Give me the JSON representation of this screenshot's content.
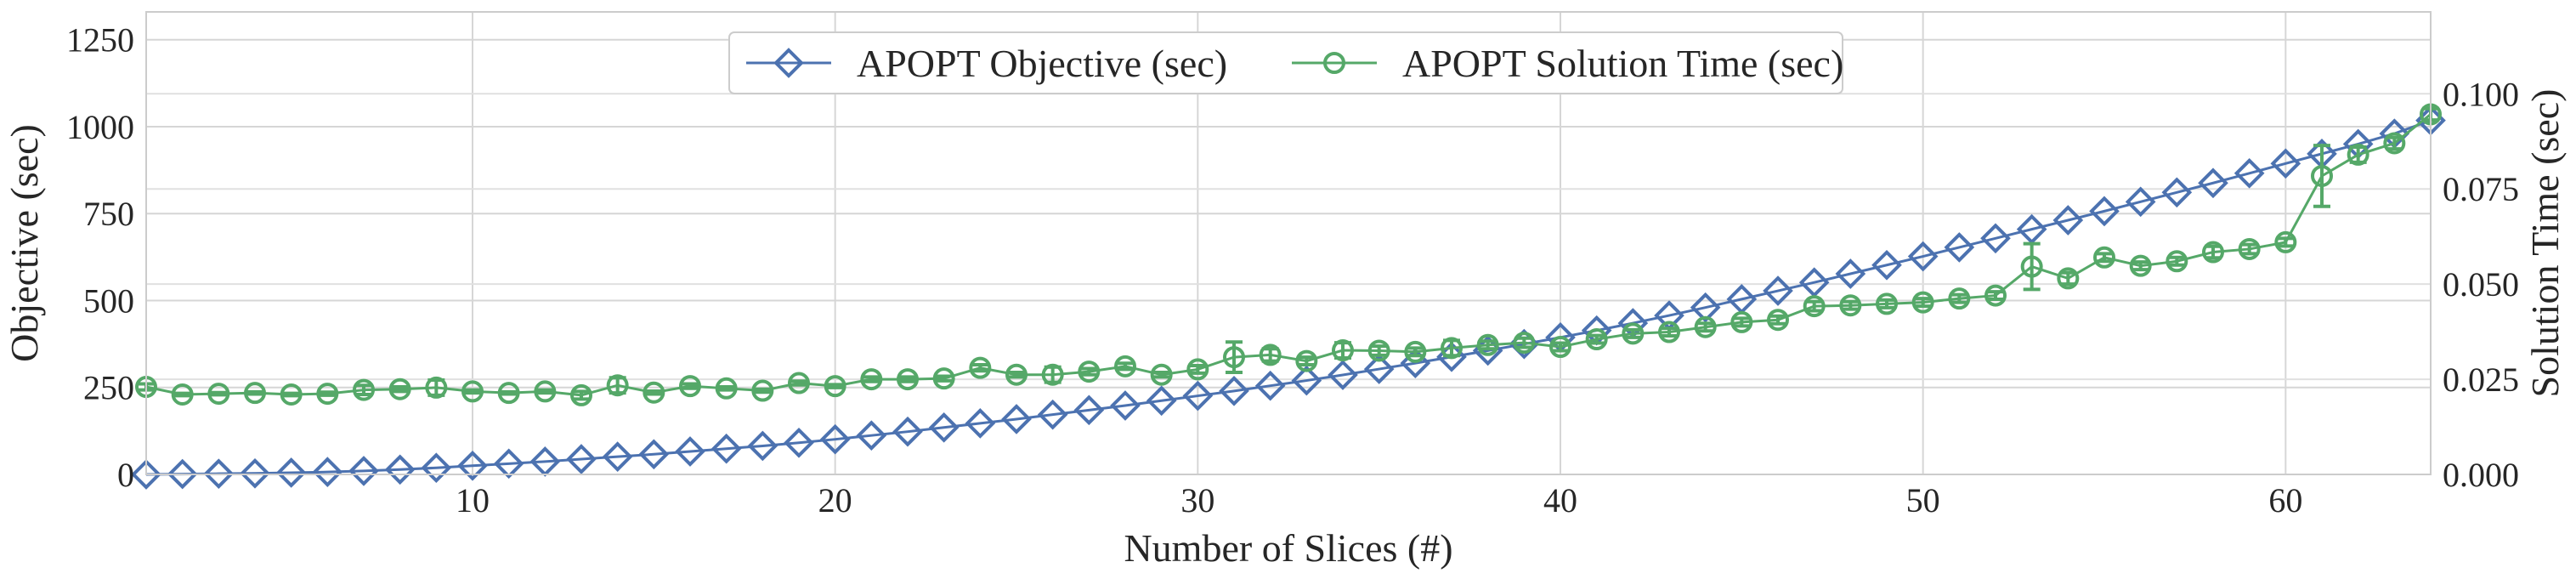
{
  "chart_data": {
    "type": "line",
    "title": "",
    "xlabel": "Number of Slices (#)",
    "ylabel": "Objective (sec)",
    "y2label": "Solution Time (sec)",
    "xlim": [
      1,
      64
    ],
    "ylim": [
      0,
      1330
    ],
    "y2lim": [
      0,
      0.1215
    ],
    "x_ticks": [
      10,
      20,
      30,
      40,
      50,
      60
    ],
    "y_ticks": [
      0,
      250,
      500,
      750,
      1000,
      1250
    ],
    "y2_ticks": [
      0.0,
      0.025,
      0.05,
      0.075,
      0.1
    ],
    "x_tick_labels": [
      "10",
      "20",
      "30",
      "40",
      "50",
      "60"
    ],
    "y_tick_labels": [
      "0",
      "250",
      "500",
      "750",
      "1000",
      "1250"
    ],
    "y2_tick_labels": [
      "0.000",
      "0.025",
      "0.050",
      "0.075",
      "0.100"
    ],
    "grid": true,
    "legend_position": "top-center",
    "series": [
      {
        "name": "APOPT Objective (sec)",
        "axis": "left",
        "marker": "diamond",
        "color": "#4c72b0",
        "x": [
          1,
          2,
          3,
          4,
          5,
          6,
          7,
          8,
          9,
          10,
          11,
          12,
          13,
          14,
          15,
          16,
          17,
          18,
          19,
          20,
          21,
          22,
          23,
          24,
          25,
          26,
          27,
          28,
          29,
          30,
          31,
          32,
          33,
          34,
          35,
          36,
          37,
          38,
          39,
          40,
          41,
          42,
          43,
          44,
          45,
          46,
          47,
          48,
          49,
          50,
          51,
          52,
          53,
          54,
          55,
          56,
          57,
          58,
          59,
          60,
          61,
          62,
          63,
          64
        ],
        "values": [
          0,
          1,
          2,
          3,
          5,
          7,
          10,
          14,
          19,
          25,
          31,
          37,
          44,
          51,
          58,
          66,
          74,
          82,
          91,
          101,
          112,
          123,
          135,
          147,
          159,
          172,
          185,
          198,
          212,
          226,
          240,
          255,
          270,
          286,
          303,
          320,
          338,
          356,
          375,
          394,
          414,
          435,
          457,
          480,
          504,
          528,
          552,
          577,
          602,
          627,
          653,
          679,
          705,
          731,
          757,
          784,
          811,
          838,
          866,
          894,
          922,
          950,
          980,
          1018
        ],
        "errors": []
      },
      {
        "name": "APOPT Solution Time (sec)",
        "axis": "right",
        "marker": "circle",
        "color": "#55a868",
        "x": [
          1,
          2,
          3,
          4,
          5,
          6,
          7,
          8,
          9,
          10,
          11,
          12,
          13,
          14,
          15,
          16,
          17,
          18,
          19,
          20,
          21,
          22,
          23,
          24,
          25,
          26,
          27,
          28,
          29,
          30,
          31,
          32,
          33,
          34,
          35,
          36,
          37,
          38,
          39,
          40,
          41,
          42,
          43,
          44,
          45,
          46,
          47,
          48,
          49,
          50,
          51,
          52,
          53,
          54,
          55,
          56,
          57,
          58,
          59,
          60,
          61,
          62,
          63,
          64
        ],
        "values": [
          0.023,
          0.021,
          0.0212,
          0.0214,
          0.021,
          0.0212,
          0.0222,
          0.0224,
          0.0228,
          0.0218,
          0.0214,
          0.0218,
          0.0208,
          0.0234,
          0.0215,
          0.0232,
          0.0226,
          0.022,
          0.024,
          0.0232,
          0.025,
          0.025,
          0.0252,
          0.028,
          0.0262,
          0.0262,
          0.027,
          0.0284,
          0.0262,
          0.0276,
          0.0308,
          0.0314,
          0.0298,
          0.0326,
          0.0325,
          0.0322,
          0.0332,
          0.034,
          0.0346,
          0.0335,
          0.0355,
          0.037,
          0.0374,
          0.0387,
          0.04,
          0.0406,
          0.0442,
          0.0444,
          0.0448,
          0.0452,
          0.0462,
          0.047,
          0.0546,
          0.0515,
          0.057,
          0.0548,
          0.056,
          0.0584,
          0.0592,
          0.061,
          0.0784,
          0.084,
          0.087,
          0.0946
        ],
        "errors": [
          0.0008,
          0.0003,
          0.0003,
          0.0003,
          0.0003,
          0.0004,
          0.0012,
          0.0006,
          0.002,
          0.0004,
          0.0003,
          0.0004,
          0.001,
          0.002,
          0.0004,
          0.0006,
          0.0004,
          0.0004,
          0.0005,
          0.0004,
          0.0006,
          0.0006,
          0.0006,
          0.0008,
          0.0006,
          0.002,
          0.0008,
          0.0008,
          0.0006,
          0.001,
          0.004,
          0.0016,
          0.001,
          0.002,
          0.0012,
          0.001,
          0.002,
          0.001,
          0.0012,
          0.001,
          0.001,
          0.001,
          0.001,
          0.001,
          0.001,
          0.001,
          0.0012,
          0.001,
          0.001,
          0.001,
          0.001,
          0.001,
          0.006,
          0.0015,
          0.001,
          0.001,
          0.001,
          0.0015,
          0.0012,
          0.001,
          0.008,
          0.002,
          0.0015,
          0.0015
        ]
      }
    ]
  }
}
